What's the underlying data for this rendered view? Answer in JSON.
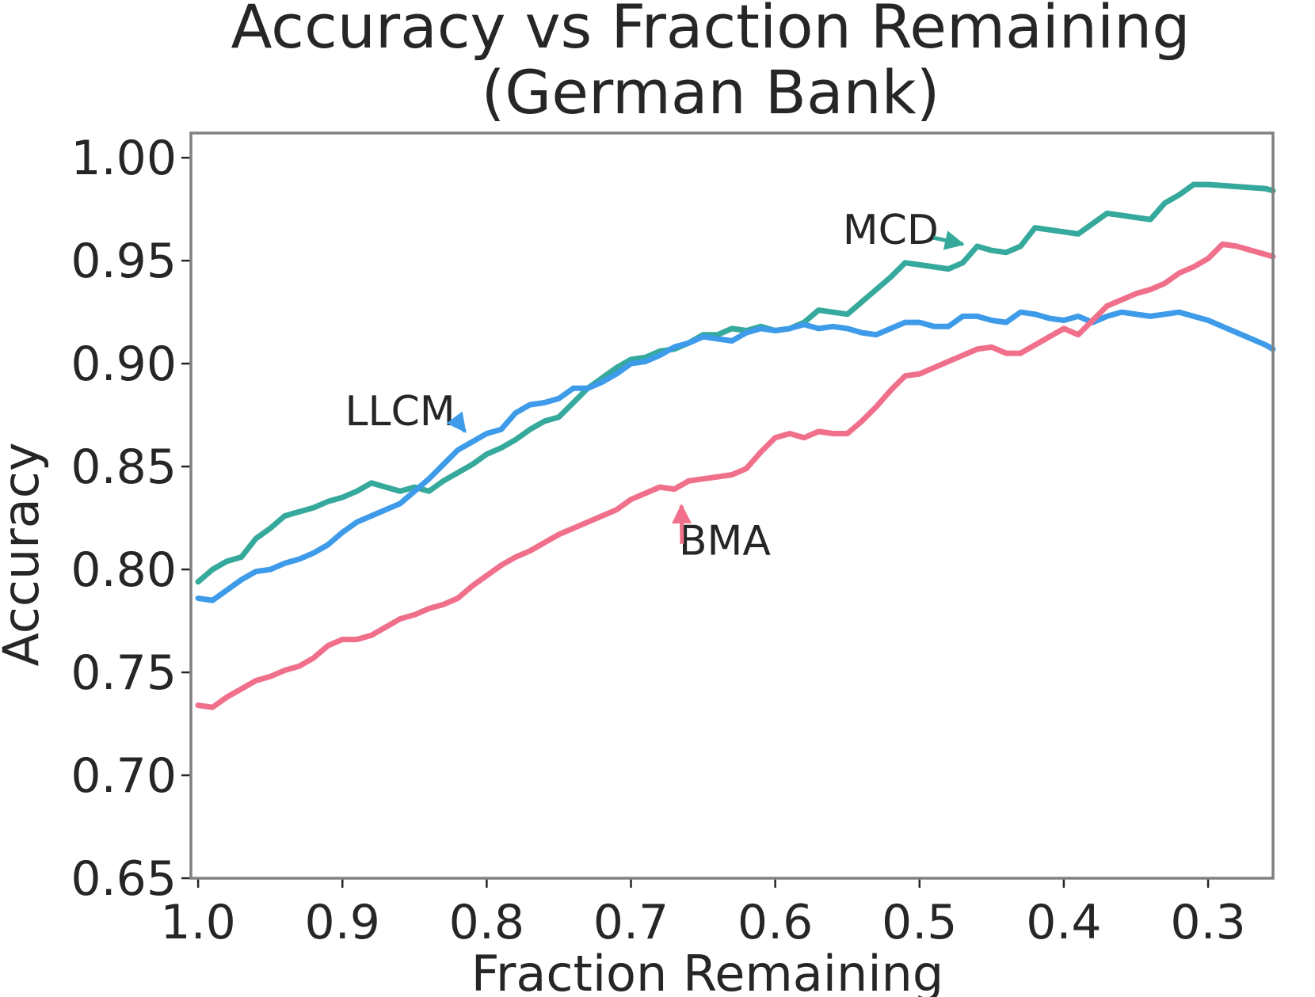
{
  "chart_data": {
    "type": "line",
    "title_lines": [
      "Accuracy vs Fraction Remaining",
      "(German Bank)"
    ],
    "xlabel": "Fraction Remaining",
    "ylabel": "Accuracy",
    "xlim": [
      1.005,
      0.255
    ],
    "ylim": [
      0.65,
      1.012
    ],
    "xticks": [
      1.0,
      0.9,
      0.8,
      0.7,
      0.6,
      0.5,
      0.4,
      0.3
    ],
    "xtick_labels": [
      "1.0",
      "0.9",
      "0.8",
      "0.7",
      "0.6",
      "0.5",
      "0.4",
      "0.3"
    ],
    "yticks": [
      0.65,
      0.7,
      0.75,
      0.8,
      0.85,
      0.9,
      0.95,
      1.0
    ],
    "ytick_labels": [
      "0.65",
      "0.70",
      "0.75",
      "0.80",
      "0.85",
      "0.90",
      "0.95",
      "1.00"
    ],
    "grid": false,
    "legend": "none",
    "series": [
      {
        "name": "MCD",
        "color": "#35a99b",
        "points": [
          [
            1.0,
            0.794
          ],
          [
            0.99,
            0.8
          ],
          [
            0.98,
            0.804
          ],
          [
            0.97,
            0.806
          ],
          [
            0.96,
            0.815
          ],
          [
            0.95,
            0.82
          ],
          [
            0.94,
            0.826
          ],
          [
            0.93,
            0.828
          ],
          [
            0.92,
            0.83
          ],
          [
            0.91,
            0.833
          ],
          [
            0.9,
            0.835
          ],
          [
            0.89,
            0.838
          ],
          [
            0.88,
            0.842
          ],
          [
            0.87,
            0.84
          ],
          [
            0.86,
            0.838
          ],
          [
            0.85,
            0.84
          ],
          [
            0.84,
            0.838
          ],
          [
            0.83,
            0.843
          ],
          [
            0.82,
            0.847
          ],
          [
            0.81,
            0.851
          ],
          [
            0.8,
            0.856
          ],
          [
            0.79,
            0.859
          ],
          [
            0.78,
            0.863
          ],
          [
            0.77,
            0.868
          ],
          [
            0.76,
            0.872
          ],
          [
            0.75,
            0.874
          ],
          [
            0.74,
            0.881
          ],
          [
            0.73,
            0.888
          ],
          [
            0.72,
            0.893
          ],
          [
            0.71,
            0.898
          ],
          [
            0.7,
            0.902
          ],
          [
            0.69,
            0.903
          ],
          [
            0.68,
            0.906
          ],
          [
            0.67,
            0.907
          ],
          [
            0.66,
            0.91
          ],
          [
            0.65,
            0.914
          ],
          [
            0.64,
            0.914
          ],
          [
            0.63,
            0.917
          ],
          [
            0.62,
            0.916
          ],
          [
            0.61,
            0.918
          ],
          [
            0.6,
            0.916
          ],
          [
            0.59,
            0.917
          ],
          [
            0.58,
            0.92
          ],
          [
            0.57,
            0.926
          ],
          [
            0.56,
            0.925
          ],
          [
            0.55,
            0.924
          ],
          [
            0.54,
            0.93
          ],
          [
            0.53,
            0.936
          ],
          [
            0.52,
            0.942
          ],
          [
            0.51,
            0.949
          ],
          [
            0.5,
            0.948
          ],
          [
            0.49,
            0.947
          ],
          [
            0.48,
            0.946
          ],
          [
            0.47,
            0.949
          ],
          [
            0.46,
            0.957
          ],
          [
            0.45,
            0.955
          ],
          [
            0.44,
            0.954
          ],
          [
            0.43,
            0.957
          ],
          [
            0.42,
            0.966
          ],
          [
            0.41,
            0.965
          ],
          [
            0.4,
            0.964
          ],
          [
            0.39,
            0.963
          ],
          [
            0.37,
            0.973
          ],
          [
            0.36,
            0.972
          ],
          [
            0.35,
            0.971
          ],
          [
            0.34,
            0.97
          ],
          [
            0.33,
            0.978
          ],
          [
            0.32,
            0.982
          ],
          [
            0.31,
            0.987
          ],
          [
            0.3,
            0.987
          ],
          [
            0.28,
            0.986
          ],
          [
            0.26,
            0.985
          ],
          [
            0.255,
            0.984
          ]
        ]
      },
      {
        "name": "LLCM",
        "color": "#3d9be9",
        "points": [
          [
            1.0,
            0.786
          ],
          [
            0.99,
            0.785
          ],
          [
            0.98,
            0.79
          ],
          [
            0.97,
            0.795
          ],
          [
            0.96,
            0.799
          ],
          [
            0.95,
            0.8
          ],
          [
            0.94,
            0.803
          ],
          [
            0.93,
            0.805
          ],
          [
            0.92,
            0.808
          ],
          [
            0.91,
            0.812
          ],
          [
            0.9,
            0.818
          ],
          [
            0.89,
            0.823
          ],
          [
            0.88,
            0.826
          ],
          [
            0.87,
            0.829
          ],
          [
            0.86,
            0.832
          ],
          [
            0.85,
            0.838
          ],
          [
            0.84,
            0.844
          ],
          [
            0.83,
            0.851
          ],
          [
            0.82,
            0.858
          ],
          [
            0.81,
            0.862
          ],
          [
            0.8,
            0.866
          ],
          [
            0.79,
            0.868
          ],
          [
            0.78,
            0.876
          ],
          [
            0.77,
            0.88
          ],
          [
            0.76,
            0.881
          ],
          [
            0.75,
            0.883
          ],
          [
            0.74,
            0.888
          ],
          [
            0.73,
            0.888
          ],
          [
            0.72,
            0.891
          ],
          [
            0.71,
            0.895
          ],
          [
            0.7,
            0.9
          ],
          [
            0.69,
            0.901
          ],
          [
            0.68,
            0.904
          ],
          [
            0.67,
            0.908
          ],
          [
            0.66,
            0.91
          ],
          [
            0.65,
            0.913
          ],
          [
            0.64,
            0.912
          ],
          [
            0.63,
            0.911
          ],
          [
            0.62,
            0.915
          ],
          [
            0.61,
            0.917
          ],
          [
            0.6,
            0.916
          ],
          [
            0.59,
            0.917
          ],
          [
            0.58,
            0.919
          ],
          [
            0.57,
            0.917
          ],
          [
            0.56,
            0.918
          ],
          [
            0.55,
            0.917
          ],
          [
            0.54,
            0.915
          ],
          [
            0.53,
            0.914
          ],
          [
            0.52,
            0.917
          ],
          [
            0.51,
            0.92
          ],
          [
            0.5,
            0.92
          ],
          [
            0.49,
            0.918
          ],
          [
            0.48,
            0.918
          ],
          [
            0.47,
            0.923
          ],
          [
            0.46,
            0.923
          ],
          [
            0.45,
            0.921
          ],
          [
            0.44,
            0.92
          ],
          [
            0.43,
            0.925
          ],
          [
            0.42,
            0.924
          ],
          [
            0.41,
            0.922
          ],
          [
            0.4,
            0.921
          ],
          [
            0.39,
            0.923
          ],
          [
            0.38,
            0.92
          ],
          [
            0.37,
            0.923
          ],
          [
            0.36,
            0.925
          ],
          [
            0.35,
            0.924
          ],
          [
            0.34,
            0.923
          ],
          [
            0.33,
            0.924
          ],
          [
            0.32,
            0.925
          ],
          [
            0.31,
            0.923
          ],
          [
            0.3,
            0.921
          ],
          [
            0.29,
            0.918
          ],
          [
            0.28,
            0.915
          ],
          [
            0.27,
            0.912
          ],
          [
            0.26,
            0.909
          ],
          [
            0.255,
            0.907
          ]
        ]
      },
      {
        "name": "BMA",
        "color": "#f0708b",
        "points": [
          [
            1.0,
            0.734
          ],
          [
            0.99,
            0.733
          ],
          [
            0.98,
            0.738
          ],
          [
            0.97,
            0.742
          ],
          [
            0.96,
            0.746
          ],
          [
            0.95,
            0.748
          ],
          [
            0.94,
            0.751
          ],
          [
            0.93,
            0.753
          ],
          [
            0.92,
            0.757
          ],
          [
            0.91,
            0.763
          ],
          [
            0.9,
            0.766
          ],
          [
            0.89,
            0.766
          ],
          [
            0.88,
            0.768
          ],
          [
            0.87,
            0.772
          ],
          [
            0.86,
            0.776
          ],
          [
            0.85,
            0.778
          ],
          [
            0.84,
            0.781
          ],
          [
            0.83,
            0.783
          ],
          [
            0.82,
            0.786
          ],
          [
            0.81,
            0.792
          ],
          [
            0.8,
            0.797
          ],
          [
            0.79,
            0.802
          ],
          [
            0.78,
            0.806
          ],
          [
            0.77,
            0.809
          ],
          [
            0.76,
            0.813
          ],
          [
            0.75,
            0.817
          ],
          [
            0.74,
            0.82
          ],
          [
            0.73,
            0.823
          ],
          [
            0.72,
            0.826
          ],
          [
            0.71,
            0.829
          ],
          [
            0.7,
            0.834
          ],
          [
            0.69,
            0.837
          ],
          [
            0.68,
            0.84
          ],
          [
            0.67,
            0.839
          ],
          [
            0.66,
            0.843
          ],
          [
            0.65,
            0.844
          ],
          [
            0.64,
            0.845
          ],
          [
            0.63,
            0.846
          ],
          [
            0.62,
            0.849
          ],
          [
            0.61,
            0.857
          ],
          [
            0.6,
            0.864
          ],
          [
            0.59,
            0.866
          ],
          [
            0.58,
            0.864
          ],
          [
            0.57,
            0.867
          ],
          [
            0.56,
            0.866
          ],
          [
            0.55,
            0.866
          ],
          [
            0.54,
            0.872
          ],
          [
            0.53,
            0.879
          ],
          [
            0.52,
            0.887
          ],
          [
            0.51,
            0.894
          ],
          [
            0.5,
            0.895
          ],
          [
            0.49,
            0.898
          ],
          [
            0.48,
            0.901
          ],
          [
            0.47,
            0.904
          ],
          [
            0.46,
            0.907
          ],
          [
            0.45,
            0.908
          ],
          [
            0.44,
            0.905
          ],
          [
            0.43,
            0.905
          ],
          [
            0.42,
            0.909
          ],
          [
            0.41,
            0.913
          ],
          [
            0.4,
            0.917
          ],
          [
            0.39,
            0.914
          ],
          [
            0.38,
            0.921
          ],
          [
            0.37,
            0.928
          ],
          [
            0.36,
            0.931
          ],
          [
            0.35,
            0.934
          ],
          [
            0.34,
            0.936
          ],
          [
            0.33,
            0.939
          ],
          [
            0.32,
            0.944
          ],
          [
            0.31,
            0.947
          ],
          [
            0.3,
            0.951
          ],
          [
            0.29,
            0.958
          ],
          [
            0.28,
            0.957
          ],
          [
            0.27,
            0.955
          ],
          [
            0.26,
            0.953
          ],
          [
            0.255,
            0.952
          ]
        ]
      }
    ],
    "annotations": [
      {
        "series": "MCD",
        "text": "MCD",
        "text_at": [
          0.52,
          0.965
        ],
        "arrow_to": [
          0.47,
          0.958
        ],
        "color": "#35a99b"
      },
      {
        "series": "LLCM",
        "text": "LLCM",
        "text_at": [
          0.86,
          0.877
        ],
        "arrow_to": [
          0.815,
          0.867
        ],
        "color": "#3d9be9"
      },
      {
        "series": "BMA",
        "text": "BMA",
        "text_at": [
          0.635,
          0.814
        ],
        "arrow_to": [
          0.665,
          0.831
        ],
        "color": "#f0708b"
      }
    ]
  }
}
